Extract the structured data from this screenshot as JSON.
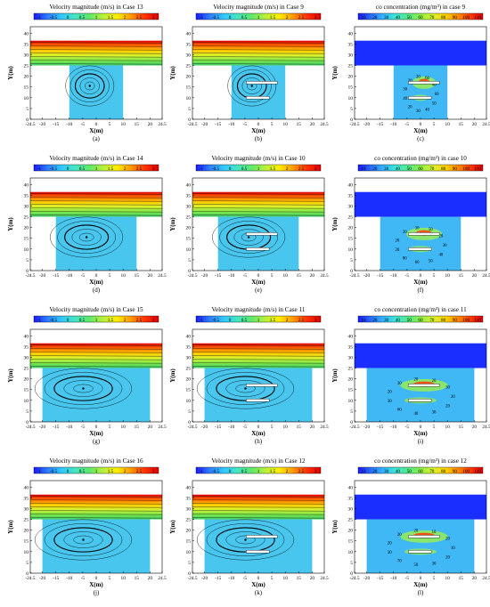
{
  "figure": {
    "y_axis_label": "Y(m)",
    "x_axis_label": "X(m)",
    "velocity_colorbar": {
      "ticks": [
        "-1",
        "-0.5",
        "0",
        "0.5",
        "1",
        "1.5",
        "2",
        "2.5",
        "3"
      ],
      "colors": [
        "#1a1aff",
        "#2e7fff",
        "#31c8ff",
        "#45e6c0",
        "#5ee86a",
        "#b8f03c",
        "#ffee00",
        "#ff9a00",
        "#ff3300",
        "#e00000"
      ]
    },
    "concentration_colorbar": {
      "ticks": [
        "10",
        "20",
        "30",
        "40",
        "50",
        "60",
        "70",
        "80",
        "90",
        "100",
        "110"
      ],
      "colors": [
        "#1a1aff",
        "#2a6bff",
        "#33b4ff",
        "#3ee6d8",
        "#52ea8a",
        "#8ef046",
        "#d8f22e",
        "#ffd200",
        "#ff8a00",
        "#ff3a00",
        "#e00000"
      ]
    },
    "x_ticks": [
      "-24.5",
      "-20",
      "-15",
      "-10",
      "-5",
      "0",
      "5",
      "10",
      "15",
      "20",
      "24.5"
    ],
    "y_ticks": [
      "0",
      "5",
      "10",
      "15",
      "20",
      "25",
      "30",
      "35",
      "40"
    ]
  },
  "panels": [
    {
      "title": "Velocity magnitude (m/s) in Case 13",
      "label": "(a)",
      "kind": "velocity",
      "canyon_width": 20,
      "roofs": []
    },
    {
      "title": "Velocity magnitude (m/s) in Case 9",
      "label": "(b)",
      "kind": "velocity",
      "canyon_width": 20,
      "roofs": [
        {
          "y": 17,
          "x1": -4.5,
          "x2": 7
        },
        {
          "y": 10,
          "x1": -4.5,
          "x2": 4
        }
      ]
    },
    {
      "title": "co concentration (mg/m³) in case 9",
      "label": "(c)",
      "kind": "concentration",
      "canyon_width": 20,
      "roofs": [
        {
          "y": 17,
          "x1": -4.5,
          "x2": 7
        },
        {
          "y": 10,
          "x1": -4.5,
          "x2": 4
        }
      ],
      "contour_labels": [
        "60",
        "50",
        "40",
        "30",
        "20",
        "40",
        "30",
        "20",
        "20",
        "60",
        "40"
      ]
    },
    {
      "title": "Velocity magnitude (m/s) in Case 14",
      "label": "(d)",
      "kind": "velocity",
      "canyon_width": 30,
      "roofs": []
    },
    {
      "title": "Velocity magnitude (m/s) in Case 10",
      "label": "(e)",
      "kind": "velocity",
      "canyon_width": 30,
      "roofs": [
        {
          "y": 17,
          "x1": -4.5,
          "x2": 7
        },
        {
          "y": 10,
          "x1": -4.5,
          "x2": 4
        }
      ]
    },
    {
      "title": "co concentration (mg/m³) in case 10",
      "label": "(f)",
      "kind": "concentration",
      "canyon_width": 30,
      "roofs": [
        {
          "y": 17,
          "x1": -4.5,
          "x2": 7
        },
        {
          "y": 10,
          "x1": -4.5,
          "x2": 4
        }
      ],
      "contour_labels": [
        "30",
        "40",
        "50",
        "60",
        "80",
        "20",
        "20",
        "20",
        "30",
        "50",
        "20"
      ]
    },
    {
      "title": "Velocity magnitude (m/s) in Case 15",
      "label": "(g)",
      "kind": "velocity",
      "canyon_width": 40,
      "roofs": []
    },
    {
      "title": "Velocity magnitude (m/s) in Case 11",
      "label": "(h)",
      "kind": "velocity",
      "canyon_width": 40,
      "roofs": [
        {
          "y": 17,
          "x1": -4.5,
          "x2": 7
        },
        {
          "y": 10,
          "x1": -4.5,
          "x2": 4
        }
      ]
    },
    {
      "title": "co concentration (mg/m³) in case 11",
      "label": "(i)",
      "kind": "concentration",
      "canyon_width": 40,
      "roofs": [
        {
          "y": 17,
          "x1": -4.5,
          "x2": 7
        },
        {
          "y": 10,
          "x1": -4.5,
          "x2": 4
        }
      ],
      "contour_labels": [
        "20",
        "20",
        "30",
        "40",
        "60",
        "30",
        "20",
        "30",
        "20",
        "20",
        "30"
      ]
    },
    {
      "title": "Velocity magnitude (m/s) in Case 16",
      "label": "(j)",
      "kind": "velocity",
      "canyon_width": 40,
      "roofs": []
    },
    {
      "title": "Velocity magnitude (m/s) in Case 12",
      "label": "(k)",
      "kind": "velocity",
      "canyon_width": 40,
      "roofs": [
        {
          "y": 17,
          "x1": -4.5,
          "x2": 7
        },
        {
          "y": 10,
          "x1": -4.5,
          "x2": 4
        }
      ]
    },
    {
      "title": "co concentration (mg/m³) in case 12",
      "label": "(l)",
      "kind": "concentration",
      "canyon_width": 40,
      "roofs": [
        {
          "y": 17,
          "x1": -4.5,
          "x2": 7
        },
        {
          "y": 10,
          "x1": -4.5,
          "x2": 4
        }
      ],
      "contour_labels": [
        "10",
        "20",
        "30",
        "50",
        "70",
        "30",
        "20",
        "20",
        "20",
        "10",
        "20"
      ]
    }
  ],
  "chart_data": {
    "type": "heatmap",
    "x_range": [
      -24.5,
      24.5
    ],
    "y_range": [
      0,
      43
    ],
    "xlabel": "X(m)",
    "ylabel": "Y(m)",
    "street_canyon_top": 25,
    "velocity_range": [
      -1,
      3
    ],
    "concentration_range": [
      10,
      110
    ],
    "cases": [
      "13",
      "9",
      "9",
      "14",
      "10",
      "10",
      "15",
      "11",
      "11",
      "16",
      "12",
      "12"
    ]
  }
}
